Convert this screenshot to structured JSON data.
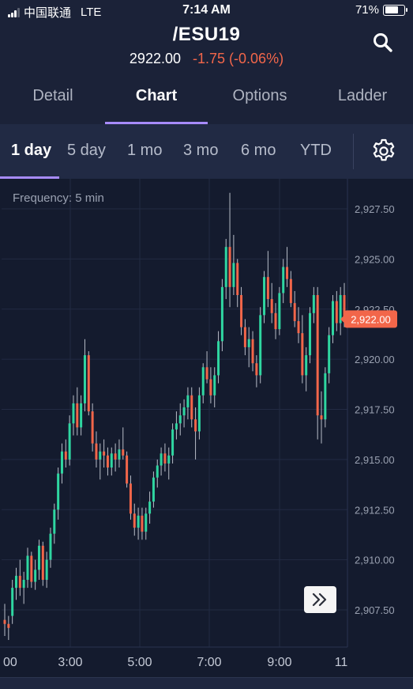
{
  "status_bar": {
    "carrier": "中国联通",
    "network": "LTE",
    "time": "7:14 AM",
    "battery": "71%",
    "battery_level": 0.71
  },
  "header": {
    "symbol": "/ESU19",
    "last_price": "2922.00",
    "change": "-1.75 (-0.06%)",
    "change_color": "#f2664a"
  },
  "tabs": [
    {
      "label": "Detail",
      "active": false
    },
    {
      "label": "Chart",
      "active": true
    },
    {
      "label": "Options",
      "active": false
    },
    {
      "label": "Ladder",
      "active": false
    }
  ],
  "ranges": [
    {
      "label": "1 day",
      "active": true
    },
    {
      "label": "5 day",
      "active": false
    },
    {
      "label": "1 mo",
      "active": false
    },
    {
      "label": "3 mo",
      "active": false
    },
    {
      "label": "6 mo",
      "active": false
    },
    {
      "label": "YTD",
      "active": false
    }
  ],
  "icons": {
    "search": "search-icon",
    "settings": "gear-icon",
    "scroll_forward": "double-chevron-right-icon"
  },
  "colors": {
    "up": "#2fd6a1",
    "down": "#f2664a",
    "accent": "#a78bfa"
  },
  "chart": {
    "frequency_label": "Frequency: 5 min",
    "current_price_label": "2,922.00"
  },
  "chart_data": {
    "type": "candlestick",
    "y_ticks": [
      "2,927.50",
      "2,925.00",
      "2,922.50",
      "2,920.00",
      "2,917.50",
      "2,915.00",
      "2,912.50",
      "2,910.00",
      "2,907.50"
    ],
    "x_ticks": [
      "00",
      "3:00",
      "5:00",
      "7:00",
      "9:00",
      "11"
    ],
    "ylim": [
      2906.0,
      2928.5
    ],
    "current_price": 2922.0,
    "candles": [
      [
        2907.0,
        2907.8,
        2906.2,
        2906.8
      ],
      [
        2906.8,
        2907.2,
        2906.0,
        2906.6
      ],
      [
        2907.2,
        2909.0,
        2906.8,
        2908.6
      ],
      [
        2908.6,
        2909.6,
        2908.0,
        2909.2
      ],
      [
        2909.2,
        2910.0,
        2908.2,
        2908.6
      ],
      [
        2908.6,
        2909.4,
        2907.8,
        2909.0
      ],
      [
        2909.0,
        2910.6,
        2908.6,
        2910.2
      ],
      [
        2910.2,
        2910.4,
        2908.6,
        2908.9
      ],
      [
        2908.9,
        2910.0,
        2908.5,
        2909.5
      ],
      [
        2909.5,
        2911.0,
        2909.0,
        2910.7
      ],
      [
        2910.7,
        2910.9,
        2908.7,
        2909.0
      ],
      [
        2909.0,
        2910.4,
        2908.6,
        2910.0
      ],
      [
        2910.0,
        2911.6,
        2909.6,
        2911.3
      ],
      [
        2911.3,
        2912.8,
        2910.8,
        2912.5
      ],
      [
        2912.5,
        2914.6,
        2912.0,
        2914.3
      ],
      [
        2914.3,
        2915.8,
        2913.8,
        2915.4
      ],
      [
        2915.4,
        2916.0,
        2914.6,
        2915.0
      ],
      [
        2915.0,
        2917.2,
        2914.7,
        2916.8
      ],
      [
        2916.8,
        2918.2,
        2916.2,
        2917.8
      ],
      [
        2917.8,
        2918.6,
        2916.2,
        2916.6
      ],
      [
        2916.6,
        2918.2,
        2916.2,
        2917.8
      ],
      [
        2917.8,
        2921.0,
        2917.4,
        2920.2
      ],
      [
        2920.2,
        2920.4,
        2917.2,
        2917.4
      ],
      [
        2917.4,
        2917.8,
        2915.4,
        2915.8
      ],
      [
        2915.8,
        2916.4,
        2914.6,
        2915.0
      ],
      [
        2915.0,
        2915.8,
        2914.0,
        2915.4
      ],
      [
        2915.4,
        2916.0,
        2914.6,
        2915.2
      ],
      [
        2915.2,
        2915.6,
        2914.2,
        2914.6
      ],
      [
        2914.6,
        2915.6,
        2914.2,
        2915.3
      ],
      [
        2915.3,
        2915.8,
        2914.4,
        2915.0
      ],
      [
        2915.0,
        2916.0,
        2914.6,
        2915.5
      ],
      [
        2915.5,
        2916.6,
        2915.0,
        2915.2
      ],
      [
        2915.2,
        2915.4,
        2913.6,
        2913.8
      ],
      [
        2913.8,
        2914.2,
        2912.0,
        2912.3
      ],
      [
        2912.3,
        2912.8,
        2911.2,
        2911.6
      ],
      [
        2911.6,
        2912.6,
        2911.0,
        2912.2
      ],
      [
        2912.2,
        2912.6,
        2911.0,
        2911.4
      ],
      [
        2911.4,
        2912.6,
        2911.0,
        2912.3
      ],
      [
        2912.3,
        2913.4,
        2911.8,
        2912.9
      ],
      [
        2912.9,
        2914.4,
        2912.6,
        2914.1
      ],
      [
        2914.1,
        2915.0,
        2913.6,
        2914.7
      ],
      [
        2914.7,
        2915.6,
        2914.2,
        2915.3
      ],
      [
        2915.3,
        2915.8,
        2914.4,
        2914.8
      ],
      [
        2914.8,
        2915.6,
        2914.0,
        2915.2
      ],
      [
        2915.2,
        2916.8,
        2914.8,
        2916.5
      ],
      [
        2916.5,
        2917.4,
        2916.0,
        2916.8
      ],
      [
        2916.8,
        2917.8,
        2916.2,
        2917.2
      ],
      [
        2917.2,
        2918.0,
        2916.6,
        2917.6
      ],
      [
        2917.6,
        2918.6,
        2917.0,
        2918.2
      ],
      [
        2918.2,
        2918.6,
        2916.6,
        2917.0
      ],
      [
        2917.0,
        2917.6,
        2915.0,
        2916.4
      ],
      [
        2916.4,
        2918.6,
        2916.0,
        2918.2
      ],
      [
        2918.2,
        2919.8,
        2917.8,
        2919.6
      ],
      [
        2919.6,
        2920.4,
        2918.8,
        2919.0
      ],
      [
        2919.0,
        2919.6,
        2917.8,
        2918.2
      ],
      [
        2918.2,
        2919.6,
        2917.6,
        2919.2
      ],
      [
        2919.2,
        2921.4,
        2918.8,
        2920.9
      ],
      [
        2920.9,
        2924.0,
        2920.4,
        2923.6
      ],
      [
        2923.6,
        2926.0,
        2923.0,
        2925.6
      ],
      [
        2925.6,
        2928.3,
        2922.6,
        2923.6
      ],
      [
        2923.6,
        2926.2,
        2923.2,
        2924.8
      ],
      [
        2924.8,
        2925.0,
        2922.6,
        2923.2
      ],
      [
        2923.2,
        2923.6,
        2921.2,
        2921.6
      ],
      [
        2921.6,
        2922.0,
        2920.2,
        2920.6
      ],
      [
        2920.6,
        2921.6,
        2919.6,
        2921.0
      ],
      [
        2921.0,
        2921.4,
        2919.4,
        2919.8
      ],
      [
        2919.8,
        2920.2,
        2918.6,
        2919.2
      ],
      [
        2919.2,
        2922.6,
        2918.8,
        2922.2
      ],
      [
        2922.2,
        2924.4,
        2921.8,
        2924.1
      ],
      [
        2924.1,
        2925.4,
        2922.6,
        2923.0
      ],
      [
        2923.0,
        2923.8,
        2921.8,
        2922.3
      ],
      [
        2922.3,
        2922.8,
        2921.0,
        2921.5
      ],
      [
        2921.5,
        2923.6,
        2921.2,
        2923.3
      ],
      [
        2923.3,
        2925.0,
        2922.8,
        2924.6
      ],
      [
        2924.6,
        2925.6,
        2923.6,
        2924.0
      ],
      [
        2924.0,
        2924.4,
        2922.6,
        2922.8
      ],
      [
        2922.8,
        2923.4,
        2921.6,
        2921.9
      ],
      [
        2921.9,
        2922.6,
        2920.8,
        2921.3
      ],
      [
        2921.3,
        2922.2,
        2918.8,
        2919.2
      ],
      [
        2919.2,
        2920.6,
        2918.4,
        2920.2
      ],
      [
        2920.2,
        2922.6,
        2919.8,
        2922.3
      ],
      [
        2922.3,
        2923.6,
        2921.8,
        2923.2
      ],
      [
        2923.2,
        2923.6,
        2916.0,
        2917.2
      ],
      [
        2917.2,
        2918.4,
        2915.8,
        2917.0
      ],
      [
        2917.0,
        2919.6,
        2916.6,
        2919.3
      ],
      [
        2919.3,
        2921.6,
        2918.8,
        2921.2
      ],
      [
        2921.2,
        2923.2,
        2920.8,
        2922.9
      ],
      [
        2922.9,
        2923.4,
        2921.4,
        2921.8
      ],
      [
        2921.8,
        2923.6,
        2921.2,
        2923.2
      ],
      [
        2923.2,
        2923.8,
        2921.6,
        2922.0
      ]
    ]
  }
}
